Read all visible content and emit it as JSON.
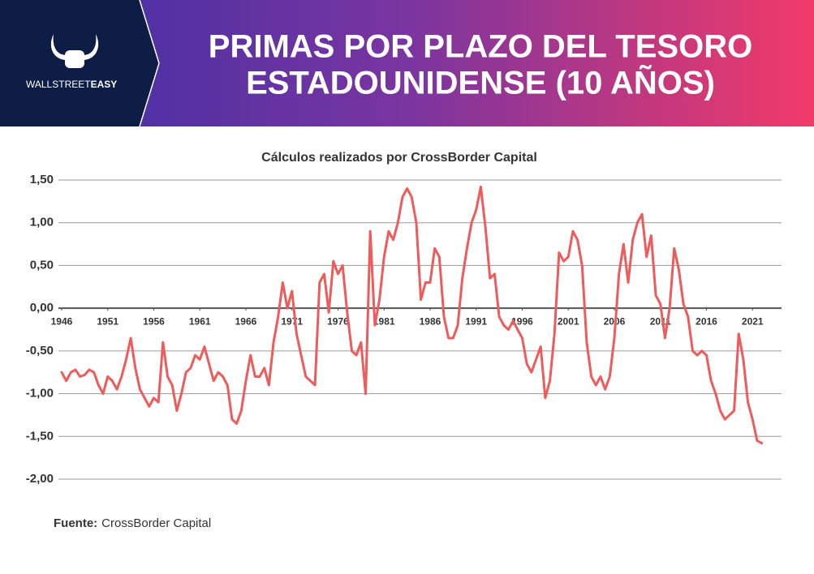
{
  "header": {
    "logo_text_1": "WALLSTREET",
    "logo_text_2": "EASY"
  },
  "chart_data": {
    "type": "line",
    "title_lines": [
      "PRIMAS POR PLAZO DEL TESORO",
      "ESTADOUNIDENSE (10 AÑOS)"
    ],
    "subtitle": "Cálculos realizados por CrossBorder Capital",
    "color": "#ee5b5b",
    "x": [
      1946,
      1946.5,
      1947,
      1947.5,
      1948,
      1948.5,
      1949,
      1949.5,
      1950,
      1950.5,
      1951,
      1951.5,
      1952,
      1952.5,
      1953,
      1953.5,
      1954,
      1954.5,
      1955,
      1955.5,
      1956,
      1956.5,
      1957,
      1957.5,
      1958,
      1958.5,
      1959,
      1959.5,
      1960,
      1960.5,
      1961,
      1961.5,
      1962,
      1962.5,
      1963,
      1963.5,
      1964,
      1964.5,
      1965,
      1965.5,
      1966,
      1966.5,
      1967,
      1967.5,
      1968,
      1968.5,
      1969,
      1969.5,
      1970,
      1970.5,
      1971,
      1971.5,
      1972,
      1972.5,
      1973,
      1973.5,
      1974,
      1974.5,
      1975,
      1975.5,
      1976,
      1976.5,
      1977,
      1977.5,
      1978,
      1978.5,
      1979,
      1979.5,
      1980,
      1980.5,
      1981,
      1981.5,
      1982,
      1982.5,
      1983,
      1983.5,
      1984,
      1984.5,
      1985,
      1985.5,
      1986,
      1986.5,
      1987,
      1987.5,
      1988,
      1988.5,
      1989,
      1989.5,
      1990,
      1990.5,
      1991,
      1991.5,
      1992,
      1992.5,
      1993,
      1993.5,
      1994,
      1994.5,
      1995,
      1995.5,
      1996,
      1996.5,
      1997,
      1997.5,
      1998,
      1998.5,
      1999,
      1999.5,
      2000,
      2000.5,
      2001,
      2001.5,
      2002,
      2002.5,
      2003,
      2003.5,
      2004,
      2004.5,
      2005,
      2005.5,
      2006,
      2006.5,
      2007,
      2007.5,
      2008,
      2008.5,
      2009,
      2009.5,
      2010,
      2010.5,
      2011,
      2011.5,
      2012,
      2012.5,
      2013,
      2013.5,
      2014,
      2014.5,
      2015,
      2015.5,
      2016,
      2016.5,
      2017,
      2017.5,
      2018,
      2018.5,
      2019,
      2019.5,
      2020,
      2020.5,
      2021,
      2021.5,
      2022
    ],
    "values": [
      -0.75,
      -0.85,
      -0.75,
      -0.72,
      -0.8,
      -0.78,
      -0.72,
      -0.75,
      -0.9,
      -1.0,
      -0.8,
      -0.85,
      -0.95,
      -0.8,
      -0.6,
      -0.35,
      -0.7,
      -0.95,
      -1.05,
      -1.15,
      -1.05,
      -1.1,
      -0.4,
      -0.8,
      -0.9,
      -1.2,
      -1.0,
      -0.75,
      -0.7,
      -0.55,
      -0.6,
      -0.45,
      -0.65,
      -0.85,
      -0.75,
      -0.8,
      -0.9,
      -1.3,
      -1.35,
      -1.2,
      -0.85,
      -0.55,
      -0.8,
      -0.8,
      -0.7,
      -0.9,
      -0.4,
      -0.1,
      0.3,
      0.0,
      0.2,
      -0.3,
      -0.55,
      -0.8,
      -0.85,
      -0.9,
      0.3,
      0.4,
      -0.05,
      0.55,
      0.4,
      0.5,
      -0.05,
      -0.5,
      -0.55,
      -0.4,
      -1.0,
      0.9,
      -0.2,
      0.1,
      0.6,
      0.9,
      0.8,
      1.0,
      1.3,
      1.4,
      1.3,
      1.0,
      0.1,
      0.3,
      0.3,
      0.7,
      0.6,
      -0.1,
      -0.35,
      -0.35,
      -0.2,
      0.35,
      0.7,
      1.0,
      1.15,
      1.42,
      0.95,
      0.35,
      0.4,
      -0.1,
      -0.2,
      -0.25,
      -0.15,
      -0.25,
      -0.35,
      -0.65,
      -0.75,
      -0.6,
      -0.45,
      -1.05,
      -0.85,
      -0.3,
      0.65,
      0.55,
      0.6,
      0.9,
      0.8,
      0.5,
      -0.4,
      -0.8,
      -0.9,
      -0.8,
      -0.95,
      -0.8,
      -0.35,
      0.4,
      0.75,
      0.3,
      0.8,
      1.0,
      1.1,
      0.6,
      0.85,
      0.15,
      0.05,
      -0.35,
      0.0,
      0.7,
      0.45,
      0.05,
      -0.1,
      -0.5,
      -0.55,
      -0.5,
      -0.55,
      -0.85,
      -1.0,
      -1.2,
      -1.3,
      -1.25,
      -1.2,
      -0.3,
      -0.6,
      -1.1,
      -1.3,
      -1.55,
      -1.58
    ],
    "xlim": [
      1945.65,
      2024.15
    ],
    "xticks": [
      1946,
      1951,
      1956,
      1961,
      1966,
      1971,
      1976,
      1981,
      1986,
      1991,
      1996,
      2001,
      2006,
      2011,
      2016,
      2021
    ],
    "ylim": [
      -2,
      1.5
    ],
    "yticks": [
      {
        "value": -2,
        "label": "-2,00"
      },
      {
        "value": -1.5,
        "label": "-1,50"
      },
      {
        "value": -1,
        "label": "-1,00"
      },
      {
        "value": -0.5,
        "label": "-0,50"
      },
      {
        "value": 0,
        "label": "0,00"
      },
      {
        "value": 0.5,
        "label": "0,50"
      },
      {
        "value": 1,
        "label": "1,00"
      },
      {
        "value": 1.5,
        "label": "1,50"
      }
    ],
    "grid": true
  },
  "source": {
    "label": "Fuente:",
    "text": "CrossBorder Capital"
  }
}
